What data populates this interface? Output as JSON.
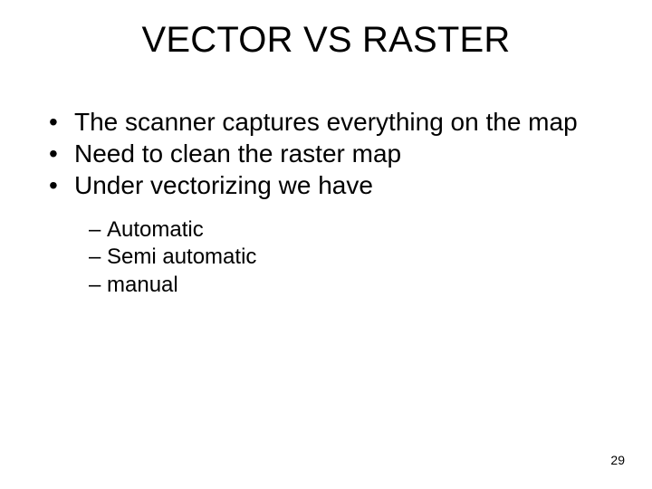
{
  "title": "VECTOR VS RASTER",
  "bullets": {
    "b1": "The scanner captures everything on the map",
    "b2": "Need to clean the raster map",
    "b3": "Under vectorizing we have",
    "s1": "Automatic",
    "s2": "Semi automatic",
    "s3": "manual"
  },
  "page_number": "29",
  "colors": {
    "background": "#ffffff",
    "text": "#000000"
  },
  "font": {
    "title_size_pt": 40,
    "body_size_pt": 28,
    "sub_size_pt": 24,
    "family": "Arial"
  }
}
